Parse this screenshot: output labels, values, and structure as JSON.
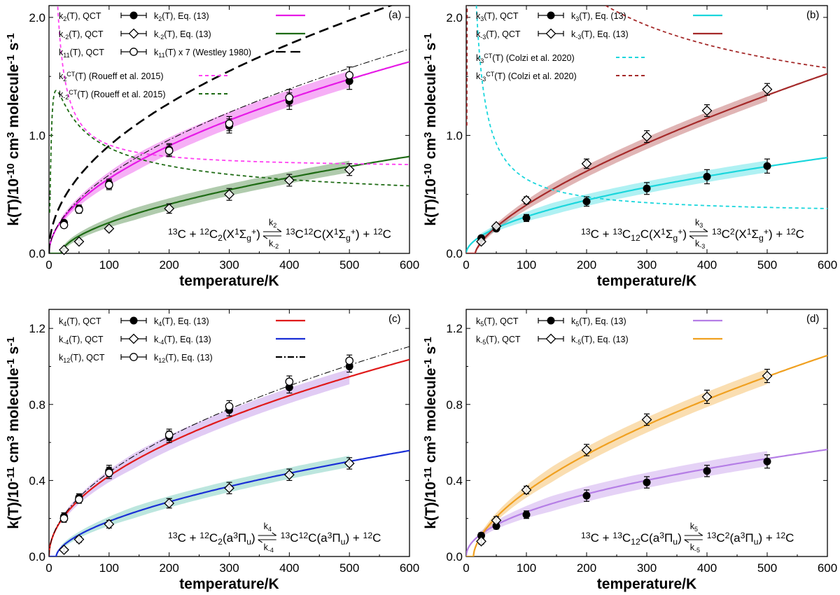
{
  "chart_data": [
    {
      "id": "a",
      "type": "line",
      "panel_label": "(a)",
      "xlabel": "temperature/K",
      "ylabel_parts": [
        "k(T)/10",
        "-10",
        " cm",
        "3",
        " molecule",
        "-1",
        " s",
        "-1"
      ],
      "xlim": [
        0,
        600
      ],
      "ylim": [
        0,
        2.1
      ],
      "xticks": [
        0,
        100,
        200,
        300,
        400,
        500,
        600
      ],
      "yticks": [
        0.0,
        1.0,
        2.0
      ],
      "ytick_labels": [
        "0.0",
        "1.0",
        "2.0"
      ],
      "x": [
        25,
        50,
        100,
        200,
        300,
        400,
        500
      ],
      "legend": [
        {
          "parts": [
            "k",
            "2",
            "(T), QCT"
          ],
          "marker": "filled",
          "fit_parts": [
            "k",
            "2",
            "(T), Eq. (13)"
          ],
          "color": "#e619e6",
          "dash": "solid"
        },
        {
          "parts": [
            "k",
            "-2",
            "(T), QCT"
          ],
          "marker": "diamond",
          "fit_parts": [
            "k",
            "-2",
            "(T), Eq. (13)"
          ],
          "color": "#1e6b14",
          "dash": "solid"
        },
        {
          "parts": [
            "k",
            "11",
            "(T), QCT"
          ],
          "marker": "open",
          "fit_parts": [
            "k",
            "11",
            "(T) x 7 (Westley 1980)"
          ],
          "color": "#000000",
          "dash": "longdash"
        }
      ],
      "legend_extra": [
        {
          "parts": [
            "k",
            "2",
            "CT",
            "(T) (Roueff et al. 2015)"
          ],
          "color": "#ff3ff2",
          "dash": "short"
        },
        {
          "parts": [
            "k",
            "-2",
            "CT",
            "(T) (Roueff et al. 2015)"
          ],
          "color": "#1e6b14",
          "dash": "short"
        }
      ],
      "series": [
        {
          "name": "k2(T), QCT",
          "marker": "filled",
          "values": [
            0.26,
            0.38,
            0.59,
            0.88,
            1.08,
            1.29,
            1.46
          ],
          "err": [
            0.02,
            0.03,
            0.04,
            0.05,
            0.06,
            0.07,
            0.07
          ]
        },
        {
          "name": "k-2(T), QCT",
          "marker": "diamond",
          "values": [
            0.03,
            0.1,
            0.21,
            0.38,
            0.5,
            0.62,
            0.71
          ],
          "err": [
            0.01,
            0.015,
            0.02,
            0.04,
            0.05,
            0.05,
            0.05
          ]
        },
        {
          "name": "k11(T), QCT",
          "marker": "open",
          "values": [
            0.24,
            0.37,
            0.58,
            0.87,
            1.1,
            1.32,
            1.51
          ],
          "err": [
            0.02,
            0.03,
            0.04,
            0.05,
            0.06,
            0.07,
            0.07
          ]
        }
      ],
      "curves": [
        {
          "name": "k2(T), Eq. (13)",
          "color": "#e619e6",
          "dash": "solid",
          "width": 2.2,
          "func": "pow",
          "A": 0.0565,
          "n": 0.525,
          "band": 0.07
        },
        {
          "name": "k-2(T), Eq. (13)",
          "color": "#1e6b14",
          "dash": "solid",
          "width": 2.2,
          "func": "powcut",
          "A": 0.0205,
          "n": 0.58,
          "T0": 20,
          "band": 0.05
        },
        {
          "name": "k11(T), Eq. (13)",
          "color": "#000000",
          "dash": "dashdot",
          "width": 1.0,
          "func": "pow",
          "A": 0.0565,
          "n": 0.535
        },
        {
          "name": "k11(T) x 7 (Westley 1980)",
          "color": "#000000",
          "dash": "longdash",
          "width": 2.6,
          "func": "pow",
          "A": 0.1,
          "n": 0.48
        },
        {
          "name": "k2CT(T) (Roueff et al. 2015)",
          "color": "#ff3ff2",
          "dash": "short",
          "width": 1.8,
          "func": "decay",
          "A": 0.72,
          "B": 20,
          "ymax": 2.3
        },
        {
          "name": "k-2CT(T) (Roueff et al. 2015)",
          "color": "#1e6b14",
          "dash": "short",
          "width": 1.8,
          "func": "peak",
          "A": 0.33,
          "B": 6,
          "C": 6
        }
      ],
      "equation_parts": [
        "13",
        "C + ",
        "12",
        "C",
        "2",
        "(X",
        "1",
        "Σ",
        "g",
        "+",
        ") ",
        "13",
        "C",
        "12",
        "C(X",
        "1",
        "Σ",
        "g",
        "+",
        ") + ",
        "12",
        "C"
      ],
      "arrow_top": [
        "k",
        "2"
      ],
      "arrow_bottom": [
        "k",
        "-2"
      ]
    },
    {
      "id": "b",
      "type": "line",
      "panel_label": "(b)",
      "xlabel": "temperature/K",
      "ylabel_parts": [
        "k(T)/10",
        "-10",
        " cm",
        "3",
        " molecule",
        "-1",
        " s",
        "-1"
      ],
      "xlim": [
        0,
        600
      ],
      "ylim": [
        0,
        2.1
      ],
      "xticks": [
        0,
        100,
        200,
        300,
        400,
        500,
        600
      ],
      "yticks": [
        0.0,
        1.0,
        2.0
      ],
      "ytick_labels": [
        "0.0",
        "1.0",
        "2.0"
      ],
      "x": [
        25,
        50,
        100,
        200,
        300,
        400,
        500
      ],
      "legend": [
        {
          "parts": [
            "k",
            "3",
            "(T), QCT"
          ],
          "marker": "filled",
          "fit_parts": [
            "k",
            "3",
            "(T), Eq. (13)"
          ],
          "color": "#1ad6dc",
          "dash": "solid"
        },
        {
          "parts": [
            "k",
            "-3",
            "(T), QCT"
          ],
          "marker": "diamond",
          "fit_parts": [
            "k",
            "-3",
            "(T), Eq. (13)"
          ],
          "color": "#a52a2a",
          "dash": "solid"
        }
      ],
      "legend_extra": [
        {
          "parts": [
            "k",
            "3",
            "CT",
            "(T) (Colzi et al. 2020)"
          ],
          "color": "#1ad6dc",
          "dash": "short"
        },
        {
          "parts": [
            "k",
            "-3",
            "CT",
            "(T) (Colzi et al. 2020)"
          ],
          "color": "#a52a2a",
          "dash": "short"
        }
      ],
      "series": [
        {
          "name": "k3(T), QCT",
          "marker": "filled",
          "values": [
            0.13,
            0.21,
            0.3,
            0.44,
            0.55,
            0.65,
            0.74
          ],
          "err": [
            0.02,
            0.02,
            0.03,
            0.04,
            0.05,
            0.06,
            0.06
          ]
        },
        {
          "name": "k-3(T), QCT",
          "marker": "diamond",
          "values": [
            0.1,
            0.23,
            0.45,
            0.76,
            0.99,
            1.21,
            1.39
          ],
          "err": [
            0.02,
            0.02,
            0.03,
            0.04,
            0.05,
            0.05,
            0.05
          ]
        }
      ],
      "curves": [
        {
          "name": "k3(T), Eq. (13)",
          "color": "#1ad6dc",
          "dash": "solid",
          "width": 2.2,
          "func": "pow",
          "A": 0.0265,
          "n": 0.535,
          "band": 0.05
        },
        {
          "name": "k-3(T), Eq. (13)",
          "color": "#a52a2a",
          "dash": "solid",
          "width": 2.2,
          "func": "powcut",
          "A": 0.02,
          "n": 0.68,
          "T0": 15,
          "band": 0.05
        },
        {
          "name": "k3CT(T) (Colzi et al. 2020)",
          "color": "#1ad6dc",
          "dash": "short",
          "width": 1.8,
          "func": "decay",
          "A": 0.33,
          "B": 30,
          "ymax": 2.3
        },
        {
          "name": "k-3CT(T) (Colzi et al. 2020)",
          "color": "#a52a2a",
          "dash": "short",
          "width": 1.8,
          "func": "peak",
          "A": 0.68,
          "B": 22,
          "C": 4
        }
      ],
      "equation_parts": [
        "13",
        "C + ",
        "13",
        "C",
        "12",
        "C(X",
        "1",
        "Σ",
        "g",
        "+",
        ") ",
        "13",
        "C",
        "2",
        "(X",
        "1",
        "Σ",
        "g",
        "+",
        ") + ",
        "12",
        "C"
      ],
      "arrow_top": [
        "k",
        "3"
      ],
      "arrow_bottom": [
        "k",
        "-3"
      ]
    },
    {
      "id": "c",
      "type": "line",
      "panel_label": "(c)",
      "xlabel": "temperature/K",
      "ylabel_parts": [
        "k(T)/10",
        "-11",
        " cm",
        "3",
        " molecule",
        "-1",
        " s",
        "-1"
      ],
      "xlim": [
        0,
        600
      ],
      "ylim": [
        0,
        1.3
      ],
      "xticks": [
        0,
        100,
        200,
        300,
        400,
        500,
        600
      ],
      "yticks": [
        0.0,
        0.4,
        0.8,
        1.2
      ],
      "ytick_labels": [
        "0.0",
        "0.4",
        "0.8",
        "1.2"
      ],
      "x": [
        25,
        50,
        100,
        200,
        300,
        400,
        500
      ],
      "legend": [
        {
          "parts": [
            "k",
            "4",
            "(T), QCT"
          ],
          "marker": "filled",
          "fit_parts": [
            "k",
            "4",
            "(T), Eq. (13)"
          ],
          "color": "#e01a1a",
          "dash": "solid"
        },
        {
          "parts": [
            "k",
            "-4",
            "(T), QCT"
          ],
          "marker": "diamond",
          "fit_parts": [
            "k",
            "-4",
            "(T), Eq. (13)"
          ],
          "color": "#1a2fd6",
          "dash": "solid"
        },
        {
          "parts": [
            "k",
            "12",
            "(T), QCT"
          ],
          "marker": "open",
          "fit_parts": [
            "k",
            "12",
            "(T), Eq. (13)"
          ],
          "color": "#000000",
          "dash": "dashdot"
        }
      ],
      "legend_extra": [],
      "series": [
        {
          "name": "k4(T), QCT",
          "marker": "filled",
          "values": [
            0.21,
            0.31,
            0.45,
            0.63,
            0.77,
            0.89,
            1.0
          ],
          "err": [
            0.02,
            0.02,
            0.03,
            0.03,
            0.03,
            0.03,
            0.03
          ]
        },
        {
          "name": "k-4(T), QCT",
          "marker": "diamond",
          "values": [
            0.035,
            0.09,
            0.17,
            0.28,
            0.36,
            0.43,
            0.49
          ],
          "err": [
            0.01,
            0.015,
            0.02,
            0.025,
            0.03,
            0.03,
            0.03
          ]
        },
        {
          "name": "k12(T), QCT",
          "marker": "open",
          "values": [
            0.2,
            0.3,
            0.44,
            0.64,
            0.79,
            0.92,
            1.03
          ],
          "err": [
            0.02,
            0.02,
            0.03,
            0.03,
            0.03,
            0.03,
            0.03
          ]
        }
      ],
      "curves": [
        {
          "name": "k4(T), Eq. (13)",
          "color": "#e01a1a",
          "dash": "solid",
          "width": 2.2,
          "func": "pow",
          "A": 0.0423,
          "n": 0.5,
          "band": 0.04,
          "band_color": "#a86be0"
        },
        {
          "name": "k-4(T), Eq. (13)",
          "color": "#1a2fd6",
          "dash": "solid",
          "width": 2.2,
          "func": "powcut",
          "A": 0.0138,
          "n": 0.58,
          "T0": 12,
          "band": 0.03,
          "band_color": "#3fb8a0"
        },
        {
          "name": "k12(T), Eq. (13)",
          "color": "#000000",
          "dash": "dashdot",
          "width": 1.0,
          "func": "pow",
          "A": 0.0423,
          "n": 0.51
        }
      ],
      "equation_parts": [
        "13",
        "C + ",
        "12",
        "C",
        "2",
        "(a",
        "3",
        "Π",
        "u",
        "",
        ") ",
        "13",
        "C",
        "12",
        "C(a",
        "3",
        "Π",
        "u",
        "",
        ") + ",
        "12",
        "C"
      ],
      "arrow_top": [
        "k",
        "4"
      ],
      "arrow_bottom": [
        "k",
        "-4"
      ]
    },
    {
      "id": "d",
      "type": "line",
      "panel_label": "(d)",
      "xlabel": "temperature/K",
      "ylabel_parts": [
        "k(T)/10",
        "-11",
        " cm",
        "3",
        " molecule",
        "-1",
        " s",
        "-1"
      ],
      "xlim": [
        0,
        600
      ],
      "ylim": [
        0,
        1.3
      ],
      "xticks": [
        0,
        100,
        200,
        300,
        400,
        500,
        600
      ],
      "yticks": [
        0.0,
        0.4,
        0.8,
        1.2
      ],
      "ytick_labels": [
        "0.0",
        "0.4",
        "0.8",
        "1.2"
      ],
      "x": [
        25,
        50,
        100,
        200,
        300,
        400,
        500
      ],
      "legend": [
        {
          "parts": [
            "k",
            "5",
            "(T), QCT"
          ],
          "marker": "filled",
          "fit_parts": [
            "k",
            "5",
            "(T), Eq. (13)"
          ],
          "color": "#b57ee6",
          "dash": "solid"
        },
        {
          "parts": [
            "k",
            "-5",
            "(T), QCT"
          ],
          "marker": "diamond",
          "fit_parts": [
            "k",
            "-5",
            "(T), Eq. (13)"
          ],
          "color": "#f0a020",
          "dash": "solid"
        }
      ],
      "legend_extra": [],
      "series": [
        {
          "name": "k5(T), QCT",
          "marker": "filled",
          "values": [
            0.11,
            0.16,
            0.22,
            0.32,
            0.39,
            0.45,
            0.5
          ],
          "err": [
            0.015,
            0.015,
            0.02,
            0.03,
            0.03,
            0.03,
            0.035
          ]
        },
        {
          "name": "k-5(T), QCT",
          "marker": "diamond",
          "values": [
            0.08,
            0.19,
            0.35,
            0.56,
            0.72,
            0.84,
            0.95
          ],
          "err": [
            0.015,
            0.02,
            0.02,
            0.03,
            0.03,
            0.035,
            0.035
          ]
        }
      ],
      "curves": [
        {
          "name": "k5(T), Eq. (13)",
          "color": "#b57ee6",
          "dash": "solid",
          "width": 2.2,
          "func": "pow",
          "A": 0.0245,
          "n": 0.49,
          "band": 0.04
        },
        {
          "name": "k-5(T), Eq. (13)",
          "color": "#f0a020",
          "dash": "solid",
          "width": 2.2,
          "func": "powcut",
          "A": 0.0238,
          "n": 0.595,
          "T0": 12,
          "band": 0.04
        }
      ],
      "equation_parts": [
        "13",
        "C + ",
        "13",
        "C",
        "12",
        "C(a",
        "3",
        "Π",
        "u",
        "",
        ") ",
        "13",
        "C",
        "2",
        "(a",
        "3",
        "Π",
        "u",
        "",
        ") + ",
        "12",
        "C"
      ],
      "arrow_top": [
        "k",
        "5"
      ],
      "arrow_bottom": [
        "k",
        "-5"
      ]
    }
  ]
}
